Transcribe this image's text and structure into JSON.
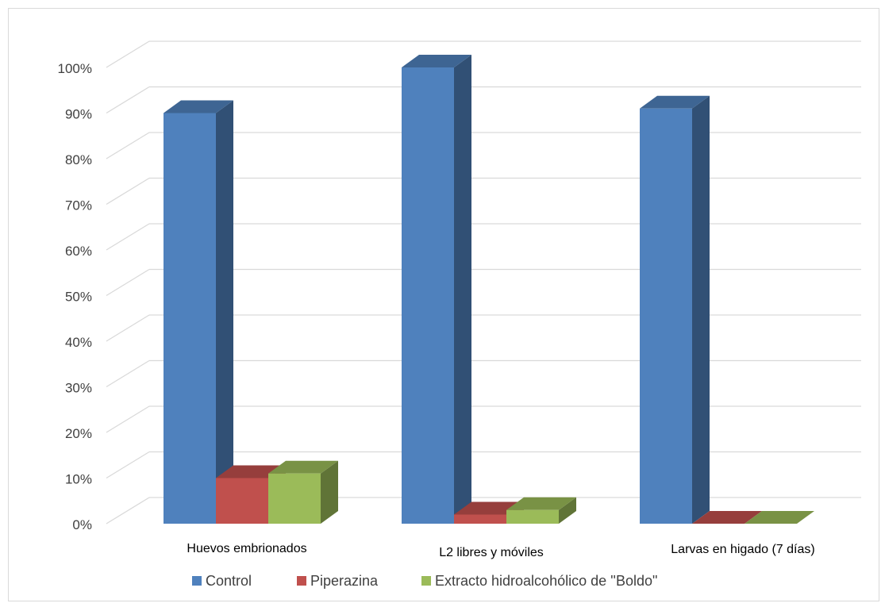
{
  "chart_data": {
    "type": "bar",
    "categories": [
      "Huevos embrionados",
      "L2 libres y móviles",
      "Larvas en higado (7 días)"
    ],
    "series": [
      {
        "name": "Control",
        "values": [
          90,
          100,
          91
        ],
        "color": "#4F81BD"
      },
      {
        "name": "Piperazina",
        "values": [
          10,
          2,
          0
        ],
        "color": "#C0504D"
      },
      {
        "name": "Extracto hidroalcohólico de ''Boldo\"",
        "values": [
          11,
          3,
          0
        ],
        "color": "#9BBB59"
      }
    ],
    "y_ticks": [
      "0%",
      "10%",
      "20%",
      "30%",
      "40%",
      "50%",
      "60%",
      "70%",
      "80%",
      "90%",
      "100%"
    ],
    "ylim": [
      0,
      100
    ],
    "unit": "%",
    "grid": true,
    "legend_position": "bottom",
    "style": "3d-clustered-column"
  }
}
